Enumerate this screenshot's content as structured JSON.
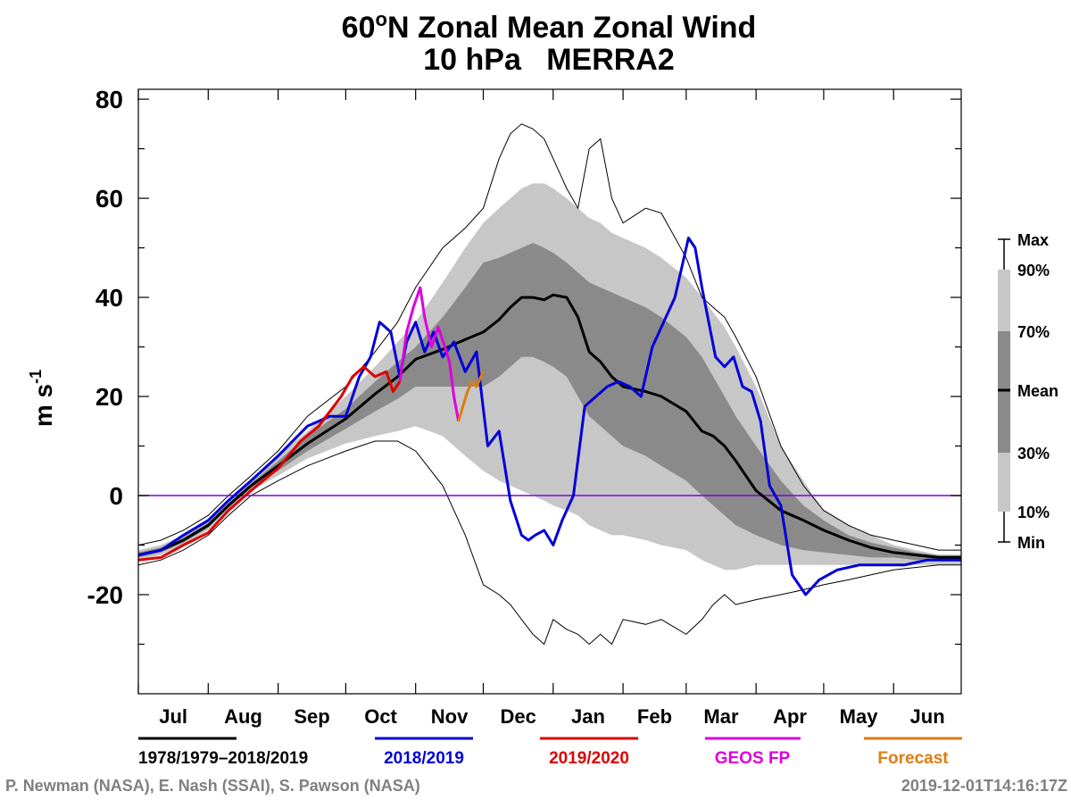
{
  "chart_data": {
    "type": "line",
    "title_part1": "60",
    "title_sup": "o",
    "title_part2": "N Zonal Mean Zonal Wind",
    "subtitle": "10 hPa   MERRA2",
    "ylabel_main": "m s",
    "ylabel_sup": "-1",
    "xlabel": "",
    "ylim": [
      -40,
      82
    ],
    "xlim": [
      0,
      365
    ],
    "yticks": [
      80,
      60,
      40,
      20,
      0,
      -20
    ],
    "ytick_labels": [
      "80",
      "60",
      "40",
      "20",
      "0",
      "-20"
    ],
    "months": [
      "Jul",
      "Aug",
      "Sep",
      "Oct",
      "Nov",
      "Dec",
      "Jan",
      "Feb",
      "Mar",
      "Apr",
      "May",
      "Jun"
    ],
    "month_starts": [
      0,
      31,
      62,
      92,
      123,
      153,
      184,
      215,
      243,
      274,
      304,
      335
    ],
    "zero_line": 0,
    "climatology": {
      "x": [
        0,
        10,
        20,
        31,
        40,
        50,
        62,
        75,
        92,
        105,
        115,
        123,
        135,
        145,
        153,
        160,
        165,
        170,
        175,
        180,
        184,
        190,
        195,
        200,
        205,
        210,
        215,
        225,
        232,
        243,
        250,
        255,
        260,
        265,
        274,
        285,
        295,
        304,
        315,
        325,
        335,
        345,
        355,
        365
      ],
      "max": [
        -10,
        -9,
        -7,
        -4,
        0,
        4,
        9,
        16,
        22,
        29,
        35,
        42,
        50,
        54,
        58,
        68,
        73,
        75,
        74,
        72,
        68,
        62,
        58,
        70,
        72,
        60,
        55,
        58,
        57,
        48,
        40,
        38,
        36,
        32,
        24,
        10,
        2,
        -3,
        -6,
        -8,
        -9,
        -10,
        -11,
        -11
      ],
      "p90": [
        -11,
        -10,
        -8,
        -5,
        -1,
        3,
        8,
        13,
        20,
        26,
        31,
        35,
        43,
        50,
        55,
        58,
        60,
        62,
        63,
        63,
        62,
        60,
        58,
        56,
        55,
        53,
        52,
        50,
        48,
        44,
        40,
        37,
        34,
        30,
        22,
        10,
        3,
        -3,
        -6,
        -8,
        -10,
        -11,
        -12,
        -12
      ],
      "p70": [
        -11.5,
        -10.5,
        -8.5,
        -5.5,
        -1.5,
        2.5,
        7,
        12,
        17.5,
        23,
        27,
        30,
        36,
        42,
        47,
        48,
        49,
        50,
        51,
        50,
        49,
        47,
        45,
        43,
        42,
        41,
        40,
        38,
        36,
        32,
        28,
        24,
        20,
        16,
        10,
        3,
        -2,
        -5,
        -8,
        -9.5,
        -10.5,
        -11.5,
        -12,
        -12
      ],
      "mean": [
        -12,
        -11,
        -9,
        -6,
        -2,
        2,
        6,
        10.5,
        15.5,
        20.5,
        24,
        27.5,
        29.5,
        31.5,
        33,
        35.5,
        38,
        40,
        40,
        39.5,
        40.5,
        40,
        36,
        29,
        27,
        24,
        22,
        21,
        20,
        17,
        13,
        12,
        10,
        7,
        1,
        -3,
        -5,
        -7,
        -9,
        -10.5,
        -11.5,
        -12,
        -12.5,
        -12.5
      ],
      "p30": [
        -12.5,
        -11.5,
        -9.5,
        -6.5,
        -2.5,
        1.5,
        5,
        9,
        13.5,
        17,
        19.5,
        22,
        22,
        22,
        22,
        24,
        26,
        28,
        28,
        27,
        26,
        24,
        20,
        16,
        14,
        12,
        10,
        8,
        6,
        3,
        0,
        -2,
        -4,
        -6,
        -8,
        -10,
        -11,
        -11.5,
        -12,
        -12.5,
        -12.5,
        -13,
        -13,
        -13
      ],
      "p10": [
        -13,
        -12,
        -10,
        -7,
        -3,
        1,
        4,
        7.5,
        10.5,
        12,
        13,
        14,
        12,
        8,
        5,
        3,
        2,
        1,
        0,
        -1,
        -2,
        -3,
        -4,
        -6,
        -7,
        -8,
        -8,
        -9,
        -10,
        -11,
        -13,
        -14,
        -15,
        -15,
        -14,
        -14,
        -14,
        -14,
        -14,
        -14,
        -14,
        -14,
        -14,
        -14
      ],
      "min": [
        -14,
        -13,
        -11,
        -8,
        -4,
        0,
        3,
        6,
        9,
        11,
        11,
        9,
        2,
        -8,
        -18,
        -20,
        -22,
        -25,
        -28,
        -30,
        -25,
        -27,
        -28,
        -30,
        -28,
        -30,
        -25,
        -26,
        -25,
        -28,
        -25,
        -22,
        -20,
        -22,
        -21,
        -20,
        -19,
        -18,
        -17,
        -16,
        -15,
        -14.5,
        -14,
        -14
      ]
    },
    "series": [
      {
        "name": "2018/2019",
        "color": "#0000d8",
        "x": [
          0,
          10,
          20,
          31,
          40,
          50,
          62,
          75,
          85,
          92,
          98,
          103,
          107,
          112,
          116,
          119,
          123,
          127,
          131,
          135,
          140,
          145,
          150,
          155,
          160,
          165,
          170,
          173,
          176,
          180,
          184,
          188,
          193,
          198,
          203,
          208,
          213,
          218,
          223,
          228,
          233,
          238,
          241,
          244,
          247,
          250,
          253,
          256,
          260,
          264,
          268,
          272,
          276,
          280,
          285,
          290,
          296,
          302,
          310,
          320,
          330,
          340,
          350,
          360,
          365
        ],
        "y": [
          -12,
          -11,
          -8,
          -5,
          -1,
          3,
          8,
          14,
          16,
          16,
          24,
          28,
          35,
          33,
          24,
          31,
          35,
          29,
          33,
          28,
          31,
          25,
          29,
          10,
          13,
          -1,
          -8,
          -9,
          -8,
          -7,
          -10,
          -5,
          0,
          18,
          20,
          22,
          23,
          22,
          20,
          30,
          35,
          40,
          46,
          52,
          50,
          42,
          35,
          28,
          26,
          28,
          22,
          21,
          15,
          2,
          -2,
          -16,
          -20,
          -17,
          -15,
          -14,
          -14,
          -14,
          -13,
          -13,
          -13
        ]
      },
      {
        "name": "2019/2020",
        "color": "#dd0000",
        "x": [
          0,
          10,
          20,
          31,
          40,
          50,
          62,
          72,
          80,
          85,
          90,
          95,
          100,
          105,
          110,
          113,
          116
        ],
        "y": [
          -13,
          -12.5,
          -10,
          -7.5,
          -3,
          1,
          5.5,
          11,
          14,
          17,
          20,
          24,
          26,
          24,
          25,
          21,
          23
        ]
      },
      {
        "name": "GEOS FP",
        "color": "#dd00dd",
        "x": [
          116,
          119,
          122,
          125,
          127,
          130,
          133,
          136,
          138,
          140,
          142
        ],
        "y": [
          23,
          33,
          38,
          42,
          36,
          30,
          34,
          30,
          27,
          20,
          15
        ]
      },
      {
        "name": "Forecast",
        "color": "#e07b10",
        "x": [
          142,
          144,
          146,
          148,
          150,
          153
        ],
        "y": [
          15,
          18,
          21,
          23,
          22,
          25
        ]
      }
    ],
    "shading_legend": {
      "labels": [
        "Max",
        "90%",
        "70%",
        "Mean",
        "30%",
        "10%",
        "Min"
      ],
      "colors": {
        "light": "#c7c7c7",
        "dark": "#8a8a8a"
      }
    },
    "line_legend": [
      {
        "label": "1978/1979–2018/2019",
        "color": "#000000"
      },
      {
        "label": "2018/2019",
        "color": "#0000d8"
      },
      {
        "label": "2019/2020",
        "color": "#dd0000"
      },
      {
        "label": "GEOS FP",
        "color": "#dd00dd"
      },
      {
        "label": "Forecast",
        "color": "#e07b10"
      }
    ],
    "zero_line_color": "#8000e0"
  },
  "footer": {
    "credit": "P. Newman (NASA), E. Nash (SSAI), S. Pawson (NASA)",
    "timestamp": "2019-12-01T14:16:17Z"
  }
}
